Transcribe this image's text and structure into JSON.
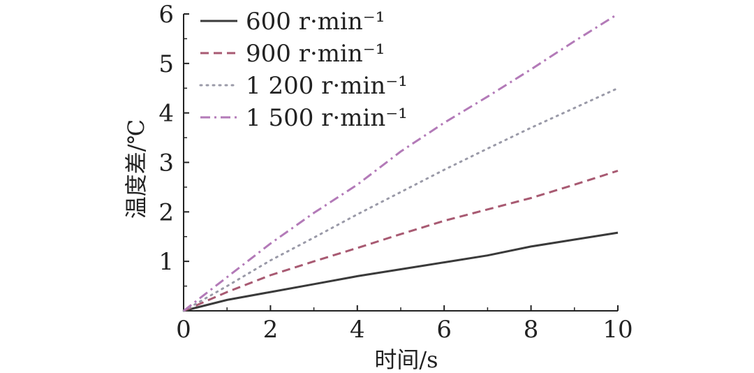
{
  "chart_data": {
    "type": "line",
    "xlabel": "时间/s",
    "ylabel": "温度差/℃",
    "xlim": [
      0,
      10
    ],
    "ylim": [
      0,
      6
    ],
    "x_ticks": [
      "0",
      "2",
      "4",
      "6",
      "8",
      "10"
    ],
    "y_ticks": [
      "1",
      "2",
      "3",
      "4",
      "5",
      "6"
    ],
    "grid": false,
    "legend_position": "top-left",
    "series": [
      {
        "name": "600 r·min⁻¹",
        "color": "#3a3a3a",
        "dash": "solid",
        "x": [
          0,
          1,
          2,
          3,
          4,
          5,
          6,
          7,
          8,
          9,
          10
        ],
        "y": [
          0,
          0.22,
          0.38,
          0.54,
          0.7,
          0.84,
          0.98,
          1.12,
          1.3,
          1.44,
          1.58
        ]
      },
      {
        "name": "900 r·min⁻¹",
        "color": "#a85a72",
        "dash": "dashed",
        "x": [
          0,
          1,
          2,
          3,
          4,
          5,
          6,
          7,
          8,
          9,
          10
        ],
        "y": [
          0,
          0.38,
          0.72,
          1.0,
          1.27,
          1.55,
          1.82,
          2.05,
          2.28,
          2.55,
          2.83
        ]
      },
      {
        "name": "1 200 r·min⁻¹",
        "color": "#9a9aa8",
        "dash": "dotted",
        "x": [
          0,
          1,
          2,
          3,
          4,
          5,
          6,
          7,
          8,
          9,
          10
        ],
        "y": [
          0,
          0.5,
          1.02,
          1.48,
          1.95,
          2.4,
          2.85,
          3.28,
          3.7,
          4.1,
          4.5
        ]
      },
      {
        "name": "1 500 r·min⁻¹",
        "color": "#b37ab8",
        "dash": "dashdot",
        "x": [
          0,
          1,
          2,
          3,
          4,
          5,
          6,
          7,
          8,
          9,
          10
        ],
        "y": [
          0,
          0.68,
          1.36,
          1.98,
          2.55,
          3.22,
          3.8,
          4.33,
          4.88,
          5.45,
          6.0
        ]
      }
    ]
  }
}
